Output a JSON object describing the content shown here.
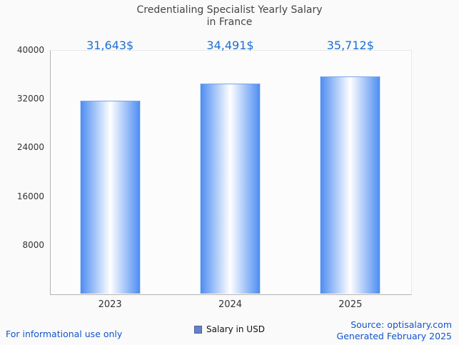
{
  "title": {
    "line1": "Credentialing Specialist Yearly Salary",
    "line2": "in France"
  },
  "chart_data": {
    "type": "bar",
    "title": "Credentialing Specialist Yearly Salary in France",
    "categories": [
      "2023",
      "2024",
      "2025"
    ],
    "values": [
      31643,
      34491,
      35712
    ],
    "value_labels": [
      "31,643$",
      "34,491$",
      "35,712$"
    ],
    "xlabel": "",
    "ylabel": "",
    "ylim": [
      0,
      40000
    ],
    "yticks": [
      8000,
      16000,
      24000,
      32000,
      40000
    ],
    "legend": "Salary in USD",
    "legend_position": "bottom",
    "grid": false,
    "bar_edge_color": "#4e8df2",
    "bar_center_color": "#ffffff",
    "value_label_color": "#1b6fd6"
  },
  "footer": {
    "left": "For informational use only",
    "source": "Source: optisalary.com",
    "generated": "Generated February 2025"
  },
  "colors": {
    "accent_blue": "#1155cc",
    "title_gray": "#454545",
    "axis_text": "#333333"
  }
}
